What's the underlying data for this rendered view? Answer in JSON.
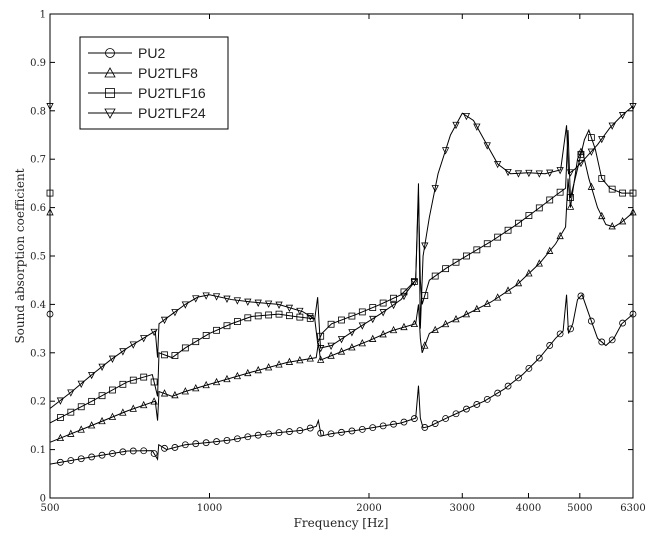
{
  "chart_data": {
    "type": "line",
    "title": "",
    "xlabel": "Frequency [Hz]",
    "ylabel": "Sound absorption coefficient",
    "x_scale": "log",
    "xlim": [
      500,
      6300
    ],
    "ylim": [
      0,
      1
    ],
    "x_ticks": [
      500,
      1000,
      2000,
      3000,
      4000,
      5000,
      6300
    ],
    "x_tick_labels": [
      "500",
      "1000",
      "2000",
      "3000",
      "4000",
      "5000",
      "6300"
    ],
    "y_ticks": [
      0,
      0.1,
      0.2,
      0.3,
      0.4,
      0.5,
      0.6,
      0.7,
      0.8,
      0.9,
      1
    ],
    "y_tick_labels": [
      "0",
      "0.1",
      "0.2",
      "0.3",
      "0.4",
      "0.5",
      "0.6",
      "0.7",
      "0.8",
      "0.9",
      "1"
    ],
    "grid": false,
    "legend_position": "top-left",
    "series": [
      {
        "name": "PU2",
        "marker": "circle",
        "points": [
          [
            500,
            0.07
          ],
          [
            600,
            0.085
          ],
          [
            700,
            0.097
          ],
          [
            780,
            0.098
          ],
          [
            798,
            0.08
          ],
          [
            802,
            0.11
          ],
          [
            830,
            0.1
          ],
          [
            900,
            0.11
          ],
          [
            1000,
            0.115
          ],
          [
            1100,
            0.12
          ],
          [
            1200,
            0.128
          ],
          [
            1350,
            0.135
          ],
          [
            1500,
            0.14
          ],
          [
            1590,
            0.148
          ],
          [
            1605,
            0.16
          ],
          [
            1625,
            0.128
          ],
          [
            1700,
            0.133
          ],
          [
            1900,
            0.14
          ],
          [
            2100,
            0.148
          ],
          [
            2300,
            0.155
          ],
          [
            2450,
            0.165
          ],
          [
            2480,
            0.232
          ],
          [
            2500,
            0.165
          ],
          [
            2530,
            0.145
          ],
          [
            2600,
            0.148
          ],
          [
            2800,
            0.165
          ],
          [
            3000,
            0.18
          ],
          [
            3300,
            0.2
          ],
          [
            3600,
            0.225
          ],
          [
            3900,
            0.255
          ],
          [
            4200,
            0.29
          ],
          [
            4500,
            0.33
          ],
          [
            4650,
            0.345
          ],
          [
            4720,
            0.42
          ],
          [
            4760,
            0.34
          ],
          [
            4850,
            0.36
          ],
          [
            4950,
            0.41
          ],
          [
            5050,
            0.42
          ],
          [
            5200,
            0.38
          ],
          [
            5400,
            0.33
          ],
          [
            5600,
            0.315
          ],
          [
            5800,
            0.33
          ],
          [
            6000,
            0.36
          ],
          [
            6150,
            0.37
          ],
          [
            6300,
            0.38
          ]
        ]
      },
      {
        "name": "PU2TLF8",
        "marker": "triangle-up",
        "points": [
          [
            500,
            0.115
          ],
          [
            600,
            0.15
          ],
          [
            700,
            0.18
          ],
          [
            790,
            0.2
          ],
          [
            798,
            0.16
          ],
          [
            803,
            0.22
          ],
          [
            850,
            0.21
          ],
          [
            900,
            0.22
          ],
          [
            1000,
            0.235
          ],
          [
            1200,
            0.26
          ],
          [
            1400,
            0.28
          ],
          [
            1590,
            0.29
          ],
          [
            1605,
            0.32
          ],
          [
            1620,
            0.285
          ],
          [
            1800,
            0.305
          ],
          [
            2000,
            0.325
          ],
          [
            2200,
            0.345
          ],
          [
            2450,
            0.36
          ],
          [
            2480,
            0.4
          ],
          [
            2500,
            0.33
          ],
          [
            2520,
            0.3
          ],
          [
            2600,
            0.34
          ],
          [
            2800,
            0.36
          ],
          [
            3000,
            0.375
          ],
          [
            3400,
            0.405
          ],
          [
            3800,
            0.44
          ],
          [
            4200,
            0.485
          ],
          [
            4500,
            0.525
          ],
          [
            4700,
            0.56
          ],
          [
            4750,
            0.66
          ],
          [
            4800,
            0.6
          ],
          [
            4950,
            0.7
          ],
          [
            5050,
            0.72
          ],
          [
            5200,
            0.66
          ],
          [
            5400,
            0.6
          ],
          [
            5600,
            0.565
          ],
          [
            5800,
            0.56
          ],
          [
            6000,
            0.57
          ],
          [
            6300,
            0.59
          ]
        ]
      },
      {
        "name": "PU2TLF16",
        "marker": "square",
        "points": [
          [
            500,
            0.155
          ],
          [
            600,
            0.2
          ],
          [
            700,
            0.24
          ],
          [
            780,
            0.255
          ],
          [
            798,
            0.21
          ],
          [
            803,
            0.3
          ],
          [
            850,
            0.29
          ],
          [
            900,
            0.31
          ],
          [
            1000,
            0.34
          ],
          [
            1100,
            0.36
          ],
          [
            1200,
            0.375
          ],
          [
            1350,
            0.38
          ],
          [
            1450,
            0.375
          ],
          [
            1580,
            0.37
          ],
          [
            1600,
            0.32
          ],
          [
            1630,
            0.34
          ],
          [
            1700,
            0.36
          ],
          [
            1900,
            0.38
          ],
          [
            2100,
            0.4
          ],
          [
            2300,
            0.42
          ],
          [
            2450,
            0.45
          ],
          [
            2480,
            0.63
          ],
          [
            2500,
            0.45
          ],
          [
            2520,
            0.4
          ],
          [
            2600,
            0.45
          ],
          [
            2800,
            0.475
          ],
          [
            3000,
            0.495
          ],
          [
            3400,
            0.53
          ],
          [
            3800,
            0.565
          ],
          [
            4200,
            0.6
          ],
          [
            4500,
            0.625
          ],
          [
            4700,
            0.64
          ],
          [
            4750,
            0.76
          ],
          [
            4800,
            0.62
          ],
          [
            4950,
            0.68
          ],
          [
            5100,
            0.74
          ],
          [
            5200,
            0.76
          ],
          [
            5350,
            0.72
          ],
          [
            5500,
            0.66
          ],
          [
            5700,
            0.64
          ],
          [
            6000,
            0.63
          ],
          [
            6300,
            0.63
          ]
        ]
      },
      {
        "name": "PU2TLF24",
        "marker": "triangle-down",
        "points": [
          [
            500,
            0.185
          ],
          [
            550,
            0.22
          ],
          [
            600,
            0.255
          ],
          [
            650,
            0.285
          ],
          [
            700,
            0.31
          ],
          [
            750,
            0.33
          ],
          [
            790,
            0.345
          ],
          [
            798,
            0.29
          ],
          [
            803,
            0.36
          ],
          [
            850,
            0.38
          ],
          [
            900,
            0.4
          ],
          [
            950,
            0.415
          ],
          [
            1000,
            0.42
          ],
          [
            1100,
            0.41
          ],
          [
            1200,
            0.405
          ],
          [
            1350,
            0.4
          ],
          [
            1500,
            0.385
          ],
          [
            1580,
            0.37
          ],
          [
            1600,
            0.415
          ],
          [
            1620,
            0.31
          ],
          [
            1700,
            0.315
          ],
          [
            1900,
            0.35
          ],
          [
            2100,
            0.38
          ],
          [
            2300,
            0.41
          ],
          [
            2450,
            0.45
          ],
          [
            2480,
            0.65
          ],
          [
            2500,
            0.35
          ],
          [
            2530,
            0.5
          ],
          [
            2600,
            0.58
          ],
          [
            2700,
            0.67
          ],
          [
            2850,
            0.75
          ],
          [
            3000,
            0.795
          ],
          [
            3150,
            0.78
          ],
          [
            3300,
            0.74
          ],
          [
            3500,
            0.69
          ],
          [
            3700,
            0.67
          ],
          [
            4000,
            0.672
          ],
          [
            4300,
            0.67
          ],
          [
            4600,
            0.678
          ],
          [
            4720,
            0.77
          ],
          [
            4760,
            0.67
          ],
          [
            4900,
            0.68
          ],
          [
            5100,
            0.7
          ],
          [
            5400,
            0.73
          ],
          [
            5700,
            0.765
          ],
          [
            6000,
            0.79
          ],
          [
            6300,
            0.81
          ]
        ]
      }
    ]
  }
}
